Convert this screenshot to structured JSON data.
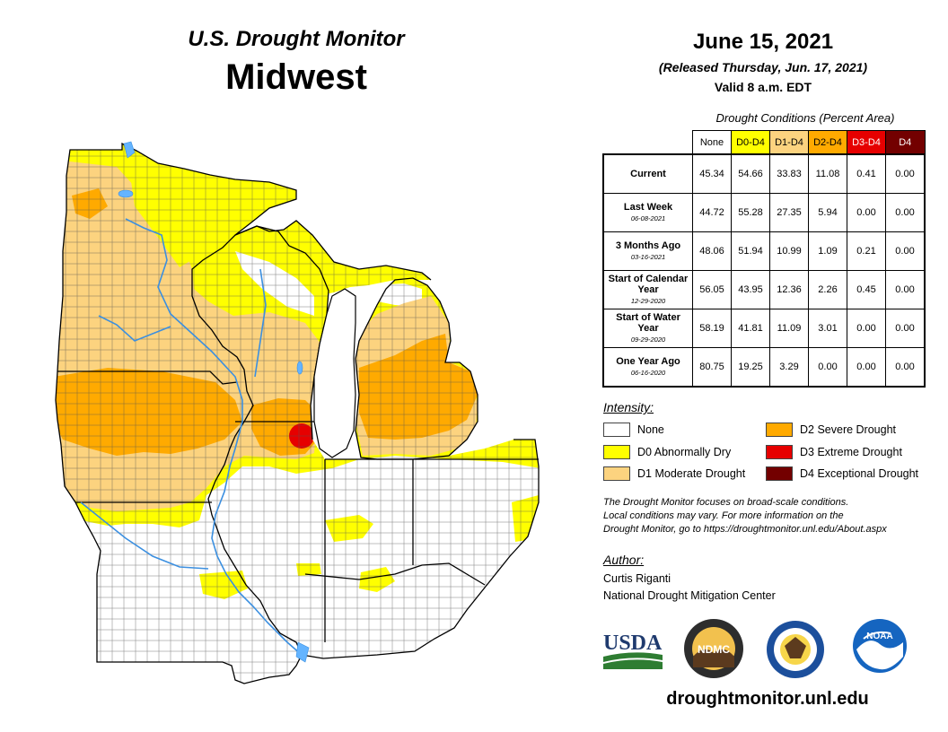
{
  "header": {
    "title": "U.S. Drought Monitor",
    "region": "Midwest",
    "date": "June 15, 2021",
    "released": "(Released Thursday, Jun. 17, 2021)",
    "valid": "Valid 8 a.m. EDT"
  },
  "table": {
    "caption": "Drought Conditions (Percent Area)",
    "columns": [
      {
        "label": "None",
        "color": "#ffffff",
        "text": "#000000"
      },
      {
        "label": "D0-D4",
        "color": "#ffff00",
        "text": "#000000"
      },
      {
        "label": "D1-D4",
        "color": "#fcd37f",
        "text": "#000000"
      },
      {
        "label": "D2-D4",
        "color": "#ffaa00",
        "text": "#000000"
      },
      {
        "label": "D3-D4",
        "color": "#e60000",
        "text": "#ffffff"
      },
      {
        "label": "D4",
        "color": "#730000",
        "text": "#ffffff"
      }
    ],
    "rows": [
      {
        "label": "Current",
        "sub": "",
        "values": [
          "45.34",
          "54.66",
          "33.83",
          "11.08",
          "0.41",
          "0.00"
        ]
      },
      {
        "label": "Last Week",
        "sub": "06-08-2021",
        "values": [
          "44.72",
          "55.28",
          "27.35",
          "5.94",
          "0.00",
          "0.00"
        ]
      },
      {
        "label": "3 Months Ago",
        "sub": "03-16-2021",
        "values": [
          "48.06",
          "51.94",
          "10.99",
          "1.09",
          "0.21",
          "0.00"
        ]
      },
      {
        "label": "Start of Calendar Year",
        "sub": "12-29-2020",
        "values": [
          "56.05",
          "43.95",
          "12.36",
          "2.26",
          "0.45",
          "0.00"
        ]
      },
      {
        "label": "Start of Water Year",
        "sub": "09-29-2020",
        "values": [
          "58.19",
          "41.81",
          "11.09",
          "3.01",
          "0.00",
          "0.00"
        ]
      },
      {
        "label": "One Year Ago",
        "sub": "06-16-2020",
        "values": [
          "80.75",
          "19.25",
          "3.29",
          "0.00",
          "0.00",
          "0.00"
        ]
      }
    ]
  },
  "legend": {
    "title": "Intensity:",
    "items": [
      {
        "label": "None",
        "color": "#ffffff"
      },
      {
        "label": "D0 Abnormally Dry",
        "color": "#ffff00"
      },
      {
        "label": "D1 Moderate Drought",
        "color": "#fcd37f"
      },
      {
        "label": "D2 Severe Drought",
        "color": "#ffaa00"
      },
      {
        "label": "D3 Extreme Drought",
        "color": "#e60000"
      },
      {
        "label": "D4 Exceptional Drought",
        "color": "#730000"
      }
    ]
  },
  "note": {
    "line1": "The Drought Monitor focuses on broad-scale conditions.",
    "line2": "Local conditions may vary. For more information on the",
    "line3": "Drought Monitor, go to https://droughtmonitor.unl.edu/About.aspx"
  },
  "author": {
    "title": "Author:",
    "name": "Curtis Riganti",
    "org": "National Drought Mitigation Center"
  },
  "logos": {
    "usda": "USDA",
    "ndmc": "NDMC",
    "noaa": "NOAA"
  },
  "website": "droughtmonitor.unl.edu",
  "map_colors": {
    "none": "#ffffff",
    "d0": "#ffff00",
    "d1": "#fcd37f",
    "d2": "#ffaa00",
    "d3": "#e60000",
    "water": "#64b4ff"
  }
}
